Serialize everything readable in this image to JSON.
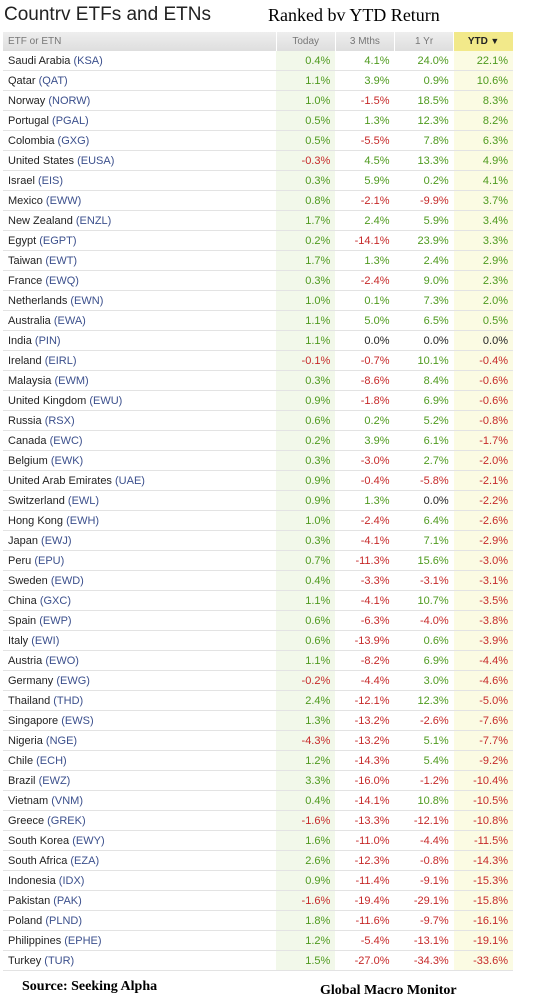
{
  "title": "Countrv ETFs and ETNs",
  "subtitle": "Ranked bv YTD Return",
  "columns": {
    "name": "ETF or ETN",
    "today": "Today",
    "m3": "3 Mths",
    "yr": "1 Yr",
    "ytd": "YTD"
  },
  "sort_icon": "triangle-down-icon",
  "colors": {
    "positive": "#4e9a1e",
    "negative": "#c62828",
    "ticker": "#3b4f8c",
    "ytd_header": "#f2e98a"
  },
  "rows": [
    {
      "country": "Saudi Arabia",
      "ticker": "(KSA)",
      "today": "0.4%",
      "m3": "4.1%",
      "yr": "24.0%",
      "ytd": "22.1%"
    },
    {
      "country": "Qatar",
      "ticker": "(QAT)",
      "today": "1.1%",
      "m3": "3.9%",
      "yr": "0.9%",
      "ytd": "10.6%"
    },
    {
      "country": "Norway",
      "ticker": "(NORW)",
      "today": "1.0%",
      "m3": "-1.5%",
      "yr": "18.5%",
      "ytd": "8.3%"
    },
    {
      "country": "Portugal",
      "ticker": "(PGAL)",
      "today": "0.5%",
      "m3": "1.3%",
      "yr": "12.3%",
      "ytd": "8.2%"
    },
    {
      "country": "Colombia",
      "ticker": "(GXG)",
      "today": "0.5%",
      "m3": "-5.5%",
      "yr": "7.8%",
      "ytd": "6.3%"
    },
    {
      "country": "United States",
      "ticker": "(EUSA)",
      "today": "-0.3%",
      "m3": "4.5%",
      "yr": "13.3%",
      "ytd": "4.9%"
    },
    {
      "country": "Israel",
      "ticker": "(EIS)",
      "today": "0.3%",
      "m3": "5.9%",
      "yr": "0.2%",
      "ytd": "4.1%"
    },
    {
      "country": "Mexico",
      "ticker": "(EWW)",
      "today": "0.8%",
      "m3": "-2.1%",
      "yr": "-9.9%",
      "ytd": "3.7%"
    },
    {
      "country": "New Zealand",
      "ticker": "(ENZL)",
      "today": "1.7%",
      "m3": "2.4%",
      "yr": "5.9%",
      "ytd": "3.4%"
    },
    {
      "country": "Egypt",
      "ticker": "(EGPT)",
      "today": "0.2%",
      "m3": "-14.1%",
      "yr": "23.9%",
      "ytd": "3.3%"
    },
    {
      "country": "Taiwan",
      "ticker": "(EWT)",
      "today": "1.7%",
      "m3": "1.3%",
      "yr": "2.4%",
      "ytd": "2.9%"
    },
    {
      "country": "France",
      "ticker": "(EWQ)",
      "today": "0.3%",
      "m3": "-2.4%",
      "yr": "9.0%",
      "ytd": "2.3%"
    },
    {
      "country": "Netherlands",
      "ticker": "(EWN)",
      "today": "1.0%",
      "m3": "0.1%",
      "yr": "7.3%",
      "ytd": "2.0%"
    },
    {
      "country": "Australia",
      "ticker": "(EWA)",
      "today": "1.1%",
      "m3": "5.0%",
      "yr": "6.5%",
      "ytd": "0.5%"
    },
    {
      "country": "India",
      "ticker": "(PIN)",
      "today": "1.1%",
      "m3": "0.0%",
      "yr": "0.0%",
      "ytd": "0.0%"
    },
    {
      "country": "Ireland",
      "ticker": "(EIRL)",
      "today": "-0.1%",
      "m3": "-0.7%",
      "yr": "10.1%",
      "ytd": "-0.4%"
    },
    {
      "country": "Malaysia",
      "ticker": "(EWM)",
      "today": "0.3%",
      "m3": "-8.6%",
      "yr": "8.4%",
      "ytd": "-0.6%"
    },
    {
      "country": "United Kingdom",
      "ticker": "(EWU)",
      "today": "0.9%",
      "m3": "-1.8%",
      "yr": "6.9%",
      "ytd": "-0.6%"
    },
    {
      "country": "Russia",
      "ticker": "(RSX)",
      "today": "0.6%",
      "m3": "0.2%",
      "yr": "5.2%",
      "ytd": "-0.8%"
    },
    {
      "country": "Canada",
      "ticker": "(EWC)",
      "today": "0.2%",
      "m3": "3.9%",
      "yr": "6.1%",
      "ytd": "-1.7%"
    },
    {
      "country": "Belgium",
      "ticker": "(EWK)",
      "today": "0.3%",
      "m3": "-3.0%",
      "yr": "2.7%",
      "ytd": "-2.0%"
    },
    {
      "country": "United Arab Emirates",
      "ticker": "(UAE)",
      "today": "0.9%",
      "m3": "-0.4%",
      "yr": "-5.8%",
      "ytd": "-2.1%"
    },
    {
      "country": "Switzerland",
      "ticker": "(EWL)",
      "today": "0.9%",
      "m3": "1.3%",
      "yr": "0.0%",
      "ytd": "-2.2%"
    },
    {
      "country": "Hong Kong",
      "ticker": "(EWH)",
      "today": "1.0%",
      "m3": "-2.4%",
      "yr": "6.4%",
      "ytd": "-2.6%"
    },
    {
      "country": "Japan",
      "ticker": "(EWJ)",
      "today": "0.3%",
      "m3": "-4.1%",
      "yr": "7.1%",
      "ytd": "-2.9%"
    },
    {
      "country": "Peru",
      "ticker": "(EPU)",
      "today": "0.7%",
      "m3": "-11.3%",
      "yr": "15.6%",
      "ytd": "-3.0%"
    },
    {
      "country": "Sweden",
      "ticker": "(EWD)",
      "today": "0.4%",
      "m3": "-3.3%",
      "yr": "-3.1%",
      "ytd": "-3.1%"
    },
    {
      "country": "China",
      "ticker": "(GXC)",
      "today": "1.1%",
      "m3": "-4.1%",
      "yr": "10.7%",
      "ytd": "-3.5%"
    },
    {
      "country": "Spain",
      "ticker": "(EWP)",
      "today": "0.6%",
      "m3": "-6.3%",
      "yr": "-4.0%",
      "ytd": "-3.8%"
    },
    {
      "country": "Italy",
      "ticker": "(EWI)",
      "today": "0.6%",
      "m3": "-13.9%",
      "yr": "0.6%",
      "ytd": "-3.9%"
    },
    {
      "country": "Austria",
      "ticker": "(EWO)",
      "today": "1.1%",
      "m3": "-8.2%",
      "yr": "6.9%",
      "ytd": "-4.4%"
    },
    {
      "country": "Germany",
      "ticker": "(EWG)",
      "today": "-0.2%",
      "m3": "-4.4%",
      "yr": "3.0%",
      "ytd": "-4.6%"
    },
    {
      "country": "Thailand",
      "ticker": "(THD)",
      "today": "2.4%",
      "m3": "-12.1%",
      "yr": "12.3%",
      "ytd": "-5.0%"
    },
    {
      "country": "Singapore",
      "ticker": "(EWS)",
      "today": "1.3%",
      "m3": "-13.2%",
      "yr": "-2.6%",
      "ytd": "-7.6%"
    },
    {
      "country": "Nigeria",
      "ticker": "(NGE)",
      "today": "-4.3%",
      "m3": "-13.2%",
      "yr": "5.1%",
      "ytd": "-7.7%"
    },
    {
      "country": "Chile",
      "ticker": "(ECH)",
      "today": "1.2%",
      "m3": "-14.3%",
      "yr": "5.4%",
      "ytd": "-9.2%"
    },
    {
      "country": "Brazil",
      "ticker": "(EWZ)",
      "today": "3.3%",
      "m3": "-16.0%",
      "yr": "-1.2%",
      "ytd": "-10.4%"
    },
    {
      "country": "Vietnam",
      "ticker": "(VNM)",
      "today": "0.4%",
      "m3": "-14.1%",
      "yr": "10.8%",
      "ytd": "-10.5%"
    },
    {
      "country": "Greece",
      "ticker": "(GREK)",
      "today": "-1.6%",
      "m3": "-13.3%",
      "yr": "-12.1%",
      "ytd": "-10.8%"
    },
    {
      "country": "South Korea",
      "ticker": "(EWY)",
      "today": "1.6%",
      "m3": "-11.0%",
      "yr": "-4.4%",
      "ytd": "-11.5%"
    },
    {
      "country": "South Africa",
      "ticker": "(EZA)",
      "today": "2.6%",
      "m3": "-12.3%",
      "yr": "-0.8%",
      "ytd": "-14.3%"
    },
    {
      "country": "Indonesia",
      "ticker": "(IDX)",
      "today": "0.9%",
      "m3": "-11.4%",
      "yr": "-9.1%",
      "ytd": "-15.3%"
    },
    {
      "country": "Pakistan",
      "ticker": "(PAK)",
      "today": "-1.6%",
      "m3": "-19.4%",
      "yr": "-29.1%",
      "ytd": "-15.8%"
    },
    {
      "country": "Poland",
      "ticker": "(PLND)",
      "today": "1.8%",
      "m3": "-11.6%",
      "yr": "-9.7%",
      "ytd": "-16.1%"
    },
    {
      "country": "Philippines",
      "ticker": "(EPHE)",
      "today": "1.2%",
      "m3": "-5.4%",
      "yr": "-13.1%",
      "ytd": "-19.1%"
    },
    {
      "country": "Turkey",
      "ticker": "(TUR)",
      "today": "1.5%",
      "m3": "-27.0%",
      "yr": "-34.3%",
      "ytd": "-33.6%"
    }
  ],
  "source_left": "Source:  Seeking Alpha",
  "source_right": "Global Macro Monitor"
}
